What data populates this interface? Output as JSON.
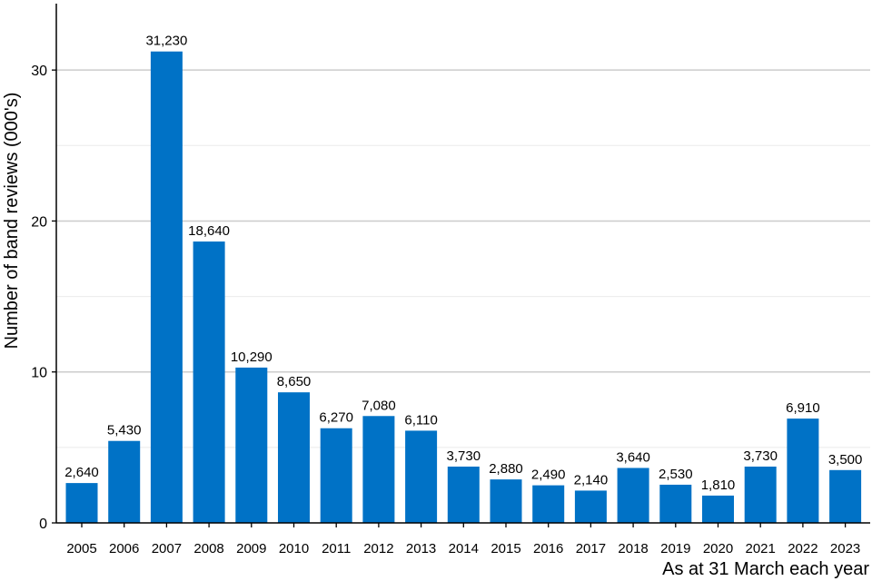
{
  "chart_data": {
    "type": "bar",
    "title": "",
    "xlabel": "As at 31 March each year",
    "ylabel": "Number of band reviews (000's)",
    "categories": [
      "2005",
      "2006",
      "2007",
      "2008",
      "2009",
      "2010",
      "2011",
      "2012",
      "2013",
      "2014",
      "2015",
      "2016",
      "2017",
      "2018",
      "2019",
      "2020",
      "2021",
      "2022",
      "2023"
    ],
    "values": [
      2.64,
      5.43,
      31.23,
      18.64,
      10.29,
      8.65,
      6.27,
      7.08,
      6.11,
      3.73,
      2.88,
      2.49,
      2.14,
      3.64,
      2.53,
      1.81,
      3.73,
      6.91,
      3.5
    ],
    "data_labels": [
      "2,640",
      "5,430",
      "31,230",
      "18,640",
      "10,290",
      "8,650",
      "6,270",
      "7,080",
      "6,110",
      "3,730",
      "2,880",
      "2,490",
      "2,140",
      "3,640",
      "2,530",
      "1,810",
      "3,730",
      "6,910",
      "3,500"
    ],
    "ylim": [
      0,
      34.4
    ],
    "yticks": [
      0,
      10,
      20,
      30
    ],
    "ytick_labels": [
      "0",
      "10",
      "20",
      "30"
    ],
    "minor_gridlines": [
      5,
      15,
      25
    ],
    "grid": true,
    "legend": "none",
    "bar_color": "#0072c6"
  }
}
